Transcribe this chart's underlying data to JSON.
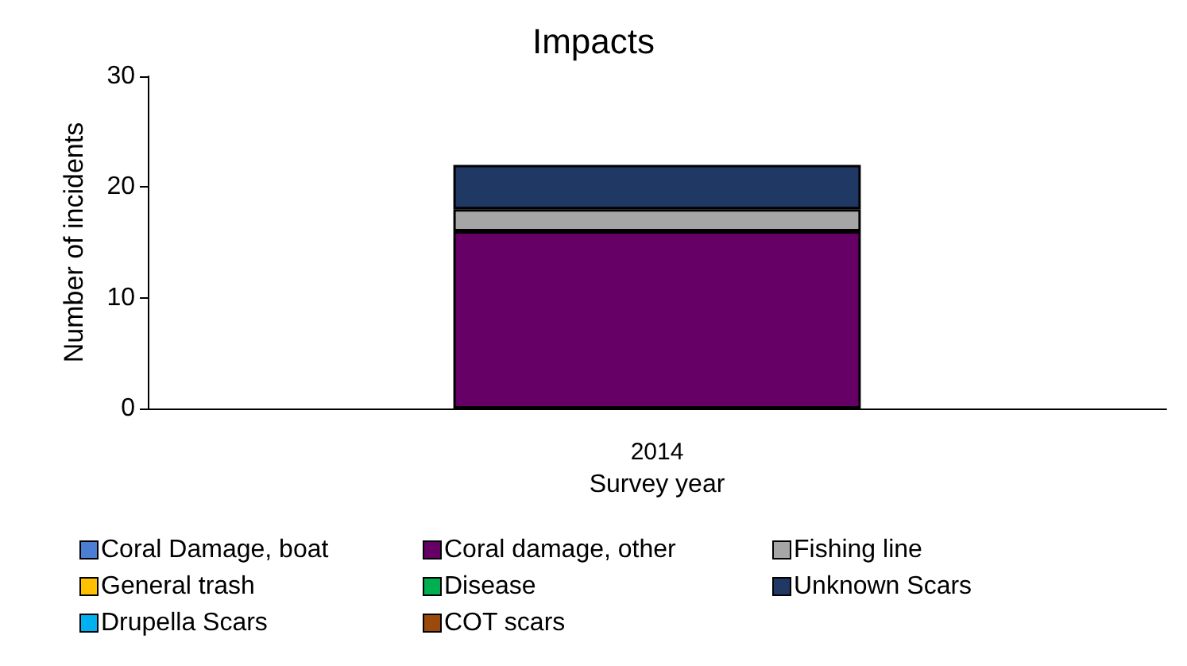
{
  "chart_data": {
    "type": "bar",
    "title": "Impacts",
    "xlabel": "Survey year",
    "ylabel": "Number of incidents",
    "categories": [
      "2014"
    ],
    "stacked": true,
    "ylim": [
      0,
      30
    ],
    "yticks": [
      0,
      10,
      20,
      30
    ],
    "grid": false,
    "legend": "bottom",
    "series": [
      {
        "name": "Coral Damage, boat",
        "color": "#4a7fd4",
        "values": [
          0
        ]
      },
      {
        "name": "Coral damage, other",
        "color": "#660066",
        "values": [
          16
        ]
      },
      {
        "name": "Fishing line",
        "color": "#a6a6a6",
        "values": [
          2
        ]
      },
      {
        "name": "General trash",
        "color": "#ffc000",
        "values": [
          0
        ]
      },
      {
        "name": "Disease",
        "color": "#00b050",
        "values": [
          0
        ]
      },
      {
        "name": "Unknown Scars",
        "color": "#203864",
        "values": [
          4
        ]
      },
      {
        "name": "Drupella Scars",
        "color": "#00b0f0",
        "values": [
          0
        ]
      },
      {
        "name": "COT scars",
        "color": "#9c4a0c",
        "values": [
          0
        ]
      }
    ]
  }
}
